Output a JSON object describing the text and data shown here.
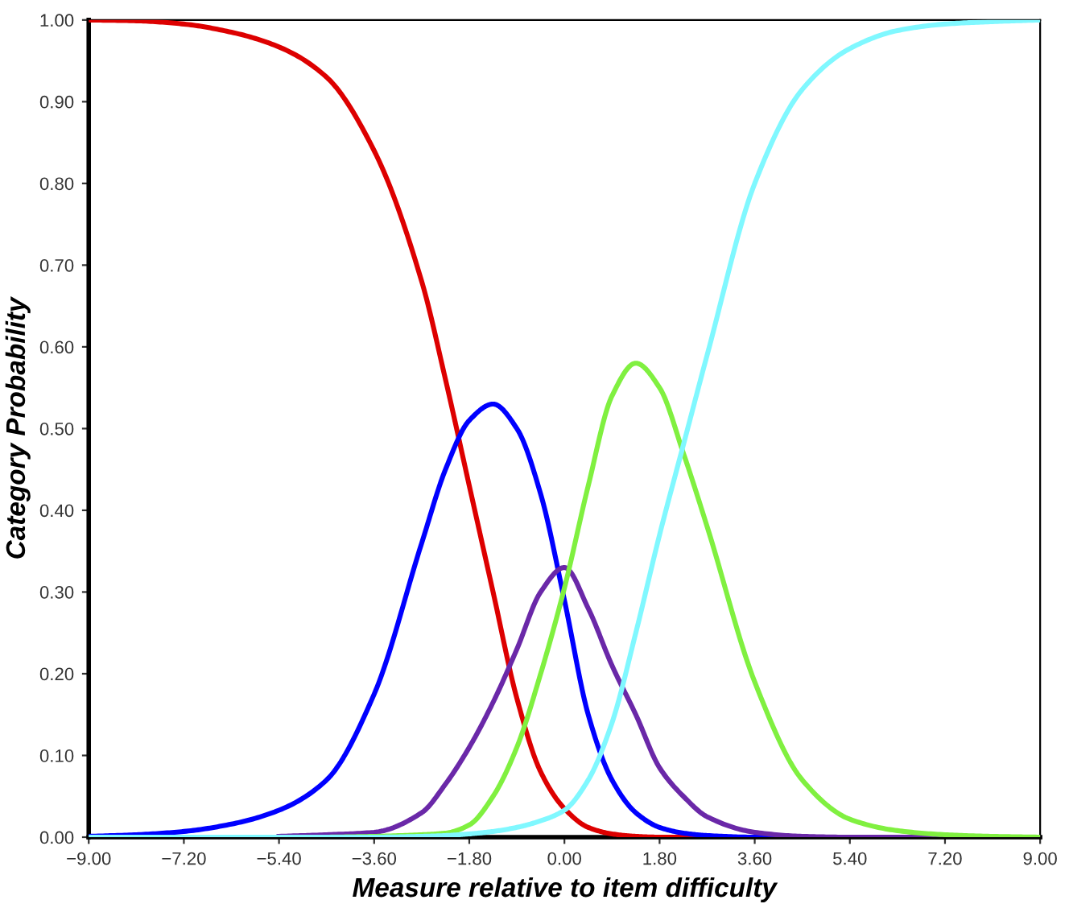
{
  "chart_data": {
    "type": "line",
    "xlabel": "Measure relative to item difficulty",
    "ylabel": "Category Probability",
    "x": [
      -9,
      -8.1,
      -7.2,
      -6.3,
      -5.4,
      -4.5,
      -3.6,
      -2.7,
      -2.25,
      -1.8,
      -1.35,
      -0.9,
      -0.45,
      0,
      0.45,
      0.9,
      1.35,
      1.8,
      2.25,
      2.7,
      3.6,
      4.5,
      5.4,
      6.3,
      7.2,
      8.1,
      9
    ],
    "series": [
      {
        "color": "#dd0000",
        "values": [
          1.0,
          0.999,
          0.995,
          0.985,
          0.967,
          0.93,
          0.84,
          0.68,
          0.56,
          0.43,
          0.3,
          0.17,
          0.08,
          0.035,
          0.012,
          0.004,
          0.001,
          0,
          0,
          0,
          null,
          null,
          null,
          null,
          null,
          null,
          null
        ]
      },
      {
        "color": "#0000ff",
        "values": [
          0.001,
          0.003,
          0.007,
          0.016,
          0.033,
          0.07,
          0.175,
          0.36,
          0.45,
          0.51,
          0.53,
          0.5,
          0.42,
          0.29,
          0.15,
          0.07,
          0.03,
          0.012,
          0.005,
          0.002,
          0,
          0,
          null,
          null,
          null,
          null,
          null
        ]
      },
      {
        "color": "#6a28a8",
        "values": [
          null,
          null,
          null,
          null,
          0.001,
          0.003,
          0.006,
          0.03,
          0.065,
          0.11,
          0.165,
          0.23,
          0.3,
          0.33,
          0.28,
          0.21,
          0.15,
          0.085,
          0.05,
          0.025,
          0.006,
          0.001,
          0,
          0,
          0,
          0,
          0
        ]
      },
      {
        "color": "#80f040",
        "values": [
          null,
          null,
          null,
          null,
          null,
          0,
          0.001,
          0.003,
          0.005,
          0.015,
          0.05,
          0.11,
          0.2,
          0.305,
          0.43,
          0.54,
          0.58,
          0.55,
          0.47,
          0.38,
          0.19,
          0.07,
          0.022,
          0.008,
          0.003,
          0.001,
          0
        ]
      },
      {
        "color": "#80f8ff",
        "values": [
          0,
          0,
          0,
          0,
          0,
          0,
          0,
          0.001,
          0.002,
          0.004,
          0.007,
          0.012,
          0.02,
          0.033,
          0.07,
          0.14,
          0.25,
          0.37,
          0.48,
          0.59,
          0.8,
          0.915,
          0.965,
          0.987,
          0.995,
          0.998,
          1.0
        ]
      }
    ],
    "xlim": [
      -9,
      9
    ],
    "xticks": [
      {
        "value": -9,
        "label": "−9.00"
      },
      {
        "value": -7.2,
        "label": "−7.20"
      },
      {
        "value": -5.4,
        "label": "−5.40"
      },
      {
        "value": -3.6,
        "label": "−3.60"
      },
      {
        "value": -1.8,
        "label": "−1.80"
      },
      {
        "value": 0,
        "label": "0.00"
      },
      {
        "value": 1.8,
        "label": "1.80"
      },
      {
        "value": 3.6,
        "label": "3.60"
      },
      {
        "value": 5.4,
        "label": "5.40"
      },
      {
        "value": 7.2,
        "label": "7.20"
      },
      {
        "value": 9,
        "label": "9.00"
      }
    ],
    "ylim": [
      0,
      1
    ],
    "yticks": [
      {
        "value": 0,
        "label": "0.00"
      },
      {
        "value": 0.1,
        "label": "0.10"
      },
      {
        "value": 0.2,
        "label": "0.20"
      },
      {
        "value": 0.3,
        "label": "0.30"
      },
      {
        "value": 0.4,
        "label": "0.40"
      },
      {
        "value": 0.5,
        "label": "0.50"
      },
      {
        "value": 0.6,
        "label": "0.60"
      },
      {
        "value": 0.7,
        "label": "0.70"
      },
      {
        "value": 0.8,
        "label": "0.80"
      },
      {
        "value": 0.9,
        "label": "0.90"
      },
      {
        "value": 1.0,
        "label": "1.00"
      }
    ],
    "grid": false,
    "marker": "none",
    "line_style": "solid"
  }
}
